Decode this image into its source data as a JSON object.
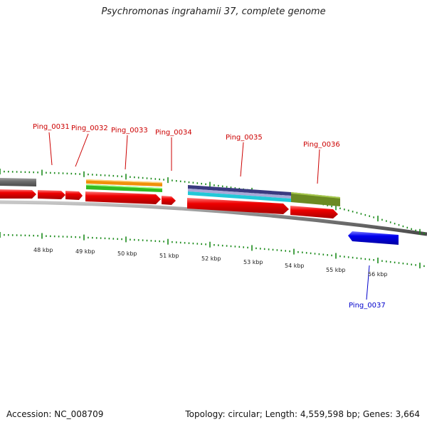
{
  "title": "Psychromonas ingrahamii 37, complete genome",
  "footer": {
    "accession": "Accession: NC_008709",
    "summary": "Topology: circular; Length: 4,559,598 bp; Genes: 3,664"
  },
  "scale_labels": [
    "48 kbp",
    "49 kbp",
    "50 kbp",
    "51 kbp",
    "52 kbp",
    "53 kbp",
    "54 kbp",
    "55 kbp",
    "56 kbp"
  ],
  "gene_labels": [
    {
      "text": "Ping_0031",
      "color": "#cc0000"
    },
    {
      "text": "Ping_0032",
      "color": "#cc0000"
    },
    {
      "text": "Ping_0033",
      "color": "#cc0000"
    },
    {
      "text": "Ping_0034",
      "color": "#cc0000"
    },
    {
      "text": "Ping_0035",
      "color": "#cc0000"
    },
    {
      "text": "Ping_0036",
      "color": "#cc0000"
    },
    {
      "text": "Ping_0037",
      "color": "#0000cc"
    }
  ],
  "colors": {
    "cds": "#ee0000",
    "reverse_cds": "#0000ee",
    "backbone": "#888888",
    "tick": "#1a8a1a",
    "grey_feature": "#6e6e6e",
    "orange_feature": "#f0900a",
    "green_feature": "#33bb22",
    "navy_feature": "#3a3a80",
    "lavender_feature": "#a8a8d8",
    "cyan_feature": "#22c8d8",
    "olive_feature": "#6b8a22"
  }
}
